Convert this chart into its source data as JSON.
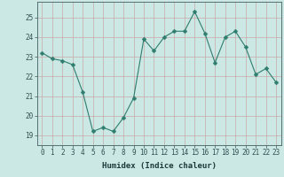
{
  "x": [
    0,
    1,
    2,
    3,
    4,
    5,
    6,
    7,
    8,
    9,
    10,
    11,
    12,
    13,
    14,
    15,
    16,
    17,
    18,
    19,
    20,
    21,
    22,
    23
  ],
  "y": [
    23.2,
    22.9,
    22.8,
    22.6,
    21.2,
    19.2,
    19.4,
    19.2,
    19.9,
    20.9,
    23.9,
    23.3,
    24.0,
    24.3,
    24.3,
    25.3,
    24.2,
    22.7,
    24.0,
    24.3,
    23.5,
    22.1,
    22.4,
    21.7
  ],
  "line_color": "#2e7d6e",
  "marker": "D",
  "marker_size": 2.5,
  "bg_color": "#cce8e4",
  "grid_color": "#b0c8c4",
  "xlabel": "Humidex (Indice chaleur)",
  "ylim": [
    18.5,
    25.8
  ],
  "xlim": [
    -0.5,
    23.5
  ],
  "yticks": [
    19,
    20,
    21,
    22,
    23,
    24,
    25
  ],
  "xticks": [
    0,
    1,
    2,
    3,
    4,
    5,
    6,
    7,
    8,
    9,
    10,
    11,
    12,
    13,
    14,
    15,
    16,
    17,
    18,
    19,
    20,
    21,
    22,
    23
  ],
  "label_fontsize": 6.5,
  "tick_fontsize": 5.5
}
